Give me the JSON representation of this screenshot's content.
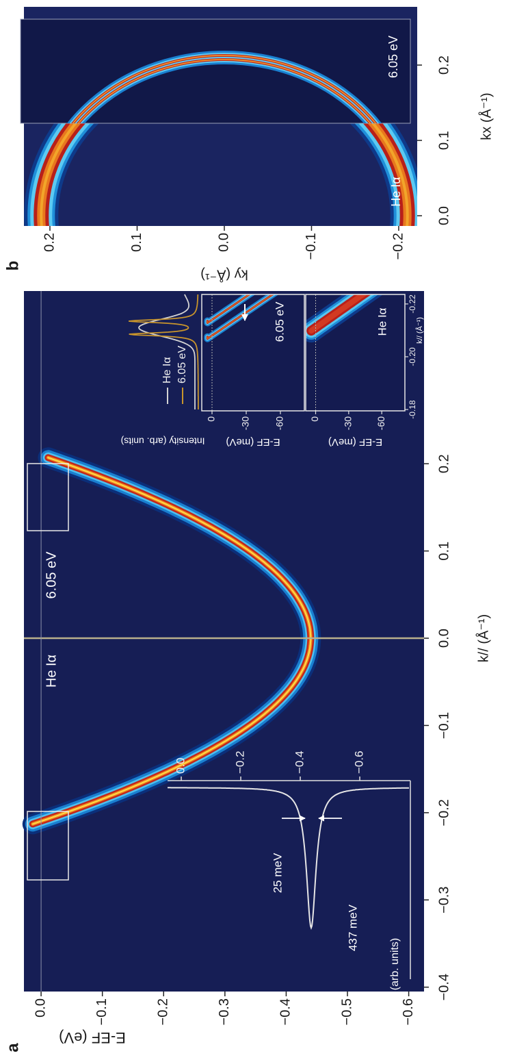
{
  "chart_data": [
    {
      "type": "heatmap",
      "panel_label": "a",
      "xlabel": "k// (Å⁻¹)",
      "ylabel": "E-EF (eV)",
      "xlim": [
        -0.405,
        0.398
      ],
      "xticks": [
        {
          "value": -0.4,
          "label": "−0.4"
        },
        {
          "value": -0.3,
          "label": "−0.3"
        },
        {
          "value": -0.2,
          "label": "−0.2"
        },
        {
          "value": -0.1,
          "label": "−0.1"
        },
        {
          "value": 0,
          "label": "0.0"
        },
        {
          "value": 0.1,
          "label": "0.1"
        },
        {
          "value": 0.2,
          "label": "0.2"
        }
      ],
      "ylim": [
        -0.625,
        0.028
      ],
      "yticks": [
        {
          "value": 0,
          "label": "0.0"
        },
        {
          "value": -0.1,
          "label": "−0.1"
        },
        {
          "value": -0.2,
          "label": "−0.2"
        },
        {
          "value": -0.3,
          "label": "−0.3"
        },
        {
          "value": -0.4,
          "label": "−0.4"
        },
        {
          "value": -0.5,
          "label": "−0.5"
        },
        {
          "value": -0.6,
          "label": "−0.6"
        }
      ],
      "annotations": [
        "He Iα",
        "6.05 eV"
      ],
      "insets": [
        {
          "type": "line",
          "xlabel": "Intensity (arb. units)",
          "ylim": [
            -0.77,
            0.046
          ],
          "yticks": [
            {
              "value": 0,
              "label": "0.0"
            },
            {
              "value": -0.2,
              "label": "−0.2"
            },
            {
              "value": -0.4,
              "label": "−0.4"
            },
            {
              "value": -0.6,
              "label": "−0.6"
            }
          ],
          "annotations": [
            "25 meV",
            "437 meV"
          ]
        },
        {
          "type": "line",
          "ylabel": "Intensity (arb. units)",
          "legend": [
            {
              "name": "He Iα",
              "color": "#d4d4d4"
            },
            {
              "name": "6.05 eV",
              "color": "#c9952c"
            }
          ]
        },
        {
          "type": "heatmap",
          "ylabel": "E-EF (meV)",
          "ylim": [
            -81,
            9
          ],
          "yticks": [
            0,
            -30,
            -60
          ],
          "annotations": [
            "6.05 eV"
          ]
        },
        {
          "type": "heatmap",
          "ylabel": "E-EF (meV)",
          "ylim": [
            -81,
            9
          ],
          "yticks": [
            0,
            -30,
            -60
          ],
          "annotations": [
            "He Iα"
          ],
          "xlabel": "k// (Å⁻¹)",
          "xlim": [
            -0.1795,
            -0.2236
          ],
          "xticks": [
            -0.18,
            {
              "value": -0.2,
              "label": "-0.20"
            },
            -0.22
          ]
        }
      ]
    },
    {
      "type": "heatmap",
      "panel_label": "b",
      "xlabel": "kx (Å⁻¹)",
      "ylabel": "ky (Å⁻¹)",
      "xlim": [
        -0.0136,
        0.2773
      ],
      "xticks": [
        {
          "value": 0,
          "label": "0.0"
        },
        {
          "value": 0.1,
          "label": "0.1"
        },
        {
          "value": 0.2,
          "label": "0.2"
        }
      ],
      "ylim": [
        -0.2212,
        0.2298
      ],
      "yticks": [
        {
          "value": 0.2,
          "label": "0.2"
        },
        {
          "value": 0.1,
          "label": "0.1"
        },
        {
          "value": 0,
          "label": "0.0"
        },
        {
          "value": -0.1,
          "label": "−0.1"
        },
        {
          "value": -0.2,
          "label": "−0.2"
        }
      ],
      "annotations": [
        "6.05 eV",
        "He Iα"
      ]
    }
  ]
}
